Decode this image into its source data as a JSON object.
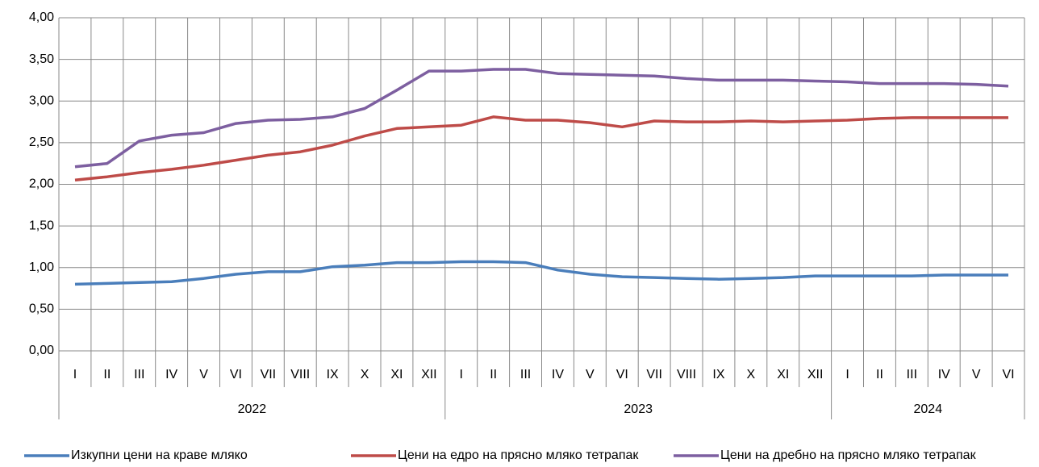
{
  "chart_data": {
    "type": "line",
    "categories": [
      "I",
      "II",
      "III",
      "IV",
      "V",
      "VI",
      "VII",
      "VIII",
      "IX",
      "X",
      "XI",
      "XII",
      "I",
      "II",
      "III",
      "IV",
      "V",
      "VI",
      "VII",
      "VIII",
      "IX",
      "X",
      "XI",
      "XII",
      "I",
      "II",
      "III",
      "IV",
      "V",
      "VI"
    ],
    "years": [
      "2022",
      "2023",
      "2024"
    ],
    "series": [
      {
        "name": "Изкупни цени на краве мляко",
        "color": "#4a7ebb",
        "values": [
          0.8,
          0.81,
          0.82,
          0.83,
          0.87,
          0.92,
          0.95,
          0.95,
          1.01,
          1.03,
          1.06,
          1.06,
          1.07,
          1.07,
          1.06,
          0.97,
          0.92,
          0.89,
          0.88,
          0.87,
          0.86,
          0.87,
          0.88,
          0.9,
          0.9,
          0.9,
          0.9,
          0.91,
          0.91,
          0.91
        ]
      },
      {
        "name": "Цени на едро на прясно мляко тетрапак",
        "color": "#be4b48",
        "values": [
          2.05,
          2.09,
          2.14,
          2.18,
          2.23,
          2.29,
          2.35,
          2.39,
          2.47,
          2.58,
          2.67,
          2.69,
          2.71,
          2.81,
          2.77,
          2.77,
          2.74,
          2.69,
          2.76,
          2.75,
          2.75,
          2.76,
          2.75,
          2.76,
          2.77,
          2.79,
          2.8,
          2.8,
          2.8,
          2.8
        ]
      },
      {
        "name": "Цени на дребно на прясно мляко тетрапак",
        "color": "#7d5fa0",
        "values": [
          2.21,
          2.25,
          2.52,
          2.59,
          2.62,
          2.73,
          2.77,
          2.78,
          2.81,
          2.91,
          3.13,
          3.36,
          3.36,
          3.38,
          3.38,
          3.33,
          3.32,
          3.31,
          3.3,
          3.27,
          3.25,
          3.25,
          3.25,
          3.24,
          3.23,
          3.21,
          3.21,
          3.21,
          3.2,
          3.18
        ]
      }
    ],
    "ylim": [
      0,
      4
    ],
    "yticks": [
      {
        "value": 0,
        "label": "0,00"
      },
      {
        "value": 0.5,
        "label": "0,50"
      },
      {
        "value": 1,
        "label": "1,00"
      },
      {
        "value": 1.5,
        "label": "1,50"
      },
      {
        "value": 2,
        "label": "2,00"
      },
      {
        "value": 2.5,
        "label": "2,50"
      },
      {
        "value": 3,
        "label": "3,00"
      },
      {
        "value": 3.5,
        "label": "3,50"
      },
      {
        "value": 4,
        "label": "4,00"
      }
    ],
    "grid": true,
    "legend": "bottom"
  }
}
